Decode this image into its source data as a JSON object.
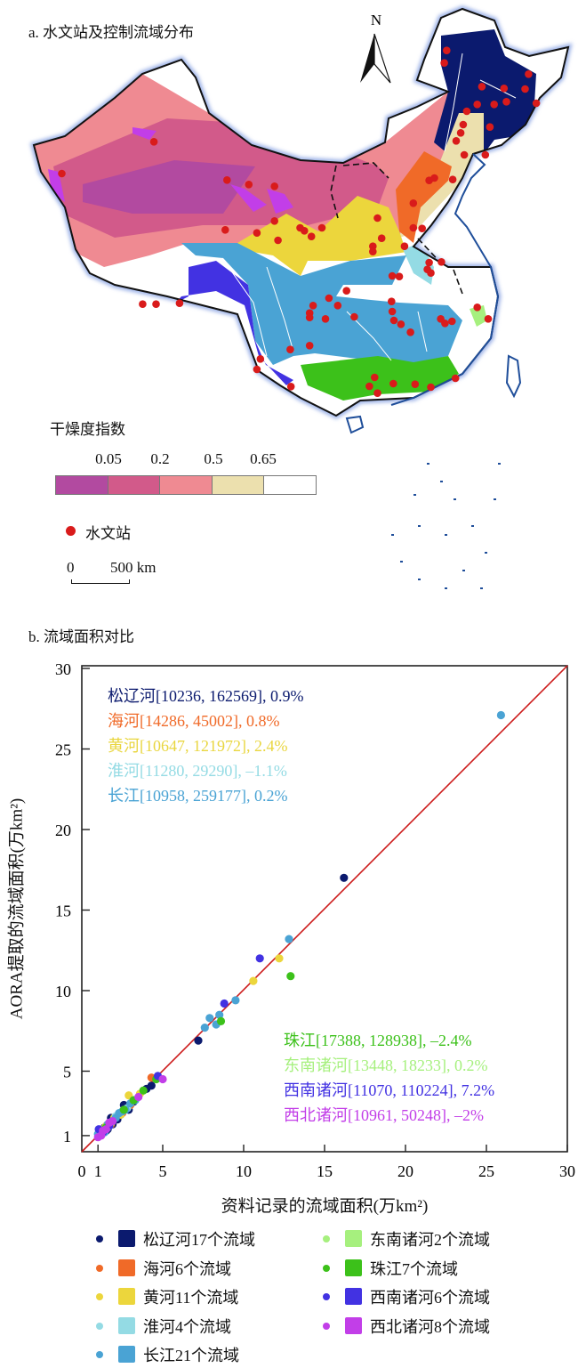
{
  "panel_a": {
    "title": "a. 水文站及控制流域分布",
    "north_label": "N",
    "aridity_legend": {
      "title": "干燥度指数",
      "breaks": [
        "0.05",
        "0.2",
        "0.5",
        "0.65"
      ],
      "colors": [
        "#b24aa0",
        "#d25a8a",
        "#ef8a92",
        "#ece0ae",
        "#ffffff"
      ]
    },
    "station_legend": {
      "label": "水文站",
      "color": "#d91b1b"
    },
    "scale_bar": {
      "start": "0",
      "end": "500 km"
    },
    "basin_colors": {
      "songliao": "#0b1a6e",
      "haihe": "#f06a28",
      "huanghe": "#ecd63c",
      "huaihe": "#94dbe4",
      "changjiang": "#4aa3d4",
      "southeast": "#a6f07e",
      "zhujiang": "#3cc11a",
      "southwest": "#4232e2",
      "northwest": "#c23ee8"
    }
  },
  "panel_b": {
    "title": "b. 流域面积对比"
  },
  "chart_data": {
    "type": "scatter",
    "xlabel": "资料记录的流域面积(万km²)",
    "ylabel": "AORA提取的流域面积(万km²)",
    "xlim": [
      0,
      30
    ],
    "ylim": [
      0,
      30
    ],
    "xticks": [
      "0",
      "1",
      "5",
      "10",
      "15",
      "20",
      "25",
      "30"
    ],
    "yticks": [
      "1",
      "5",
      "10",
      "15",
      "20",
      "25",
      "30"
    ],
    "reference_line": "1:1",
    "reference_line_color": "#cc1b1b",
    "grid": false,
    "annotations_top_left": [
      {
        "text": "松辽河[10236, 162569], 0.9%",
        "color": "#0b1a6e"
      },
      {
        "text": "海河[14286, 45002], 0.8%",
        "color": "#f06a28"
      },
      {
        "text": "黄河[10647, 121972], 2.4%",
        "color": "#e9d640"
      },
      {
        "text": "淮河[11280, 29290], –1.1%",
        "color": "#94dbe4"
      },
      {
        "text": "长江[10958, 259177], 0.2%",
        "color": "#4aa3d4"
      }
    ],
    "annotations_bottom_right": [
      {
        "text": "珠江[17388, 128938], –2.4%",
        "color": "#3cc11a"
      },
      {
        "text": "东南诸河[13448, 18233], 0.2%",
        "color": "#a6f07e"
      },
      {
        "text": "西南诸河[11070, 110224], 7.2%",
        "color": "#4232e2"
      },
      {
        "text": "西北诸河[10961, 50248], –2%",
        "color": "#c23ee8"
      }
    ],
    "series": [
      {
        "name": "松辽河17个流域",
        "color": "#0b1a6e",
        "points": [
          [
            16.2,
            17.0
          ],
          [
            7.2,
            6.9
          ],
          [
            4.3,
            4.1
          ],
          [
            2.9,
            2.6
          ],
          [
            2.6,
            2.9
          ],
          [
            1.8,
            2.1
          ],
          [
            1.6,
            1.4
          ],
          [
            1.3,
            1.2
          ],
          [
            1.1,
            1.0
          ],
          [
            2.2,
            2.0
          ],
          [
            3.2,
            3.1
          ],
          [
            1.9,
            1.7
          ],
          [
            1.5,
            1.3
          ],
          [
            2.4,
            2.3
          ],
          [
            1.2,
            1.1
          ],
          [
            4.0,
            3.9
          ],
          [
            1.4,
            1.5
          ]
        ]
      },
      {
        "name": "海河6个流域",
        "color": "#f06a28",
        "points": [
          [
            4.3,
            4.6
          ],
          [
            2.5,
            2.4
          ],
          [
            1.8,
            1.7
          ],
          [
            1.4,
            1.3
          ],
          [
            1.2,
            1.1
          ],
          [
            3.0,
            2.9
          ]
        ]
      },
      {
        "name": "黄河11个流域",
        "color": "#ecd63c",
        "points": [
          [
            12.2,
            12.0
          ],
          [
            10.6,
            10.6
          ],
          [
            2.9,
            3.5
          ],
          [
            2.0,
            2.1
          ],
          [
            1.5,
            1.6
          ],
          [
            1.2,
            1.2
          ],
          [
            2.4,
            2.3
          ],
          [
            1.7,
            1.6
          ],
          [
            1.1,
            1.1
          ],
          [
            3.6,
            3.6
          ],
          [
            1.3,
            1.4
          ]
        ]
      },
      {
        "name": "淮河4个流域",
        "color": "#94dbe4",
        "points": [
          [
            1.3,
            1.3
          ],
          [
            2.1,
            2.2
          ],
          [
            1.6,
            1.5
          ],
          [
            2.8,
            2.7
          ]
        ]
      },
      {
        "name": "长江21个流域",
        "color": "#4aa3d4",
        "points": [
          [
            25.9,
            27.1
          ],
          [
            12.8,
            13.2
          ],
          [
            9.5,
            9.4
          ],
          [
            7.9,
            8.3
          ],
          [
            8.5,
            8.5
          ],
          [
            7.6,
            7.7
          ],
          [
            8.3,
            7.9
          ],
          [
            3.0,
            3.0
          ],
          [
            2.1,
            2.1
          ],
          [
            1.2,
            1.3
          ],
          [
            1.5,
            1.4
          ],
          [
            2.7,
            2.6
          ],
          [
            1.8,
            1.8
          ],
          [
            1.1,
            1.0
          ],
          [
            3.3,
            3.2
          ],
          [
            1.4,
            1.2
          ],
          [
            2.3,
            2.4
          ],
          [
            1.6,
            1.7
          ],
          [
            1.9,
            1.9
          ],
          [
            1.0,
            1.1
          ],
          [
            2.5,
            2.5
          ]
        ]
      },
      {
        "name": "东南诸河2个流域",
        "color": "#a6f07e",
        "points": [
          [
            1.4,
            1.4
          ],
          [
            1.8,
            1.8
          ]
        ]
      },
      {
        "name": "珠江7个流域",
        "color": "#3cc11a",
        "points": [
          [
            12.9,
            10.9
          ],
          [
            8.6,
            8.1
          ],
          [
            3.8,
            3.8
          ],
          [
            4.6,
            4.5
          ],
          [
            2.6,
            2.6
          ],
          [
            1.5,
            1.5
          ],
          [
            3.2,
            3.2
          ]
        ]
      },
      {
        "name": "西南诸河6个流域",
        "color": "#4232e2",
        "points": [
          [
            11.0,
            12.0
          ],
          [
            8.8,
            9.2
          ],
          [
            4.7,
            4.7
          ],
          [
            1.05,
            1.4
          ],
          [
            1.3,
            1.2
          ],
          [
            1.7,
            1.6
          ]
        ]
      },
      {
        "name": "西北诸河8个流域",
        "color": "#c23ee8",
        "points": [
          [
            5.0,
            4.5
          ],
          [
            3.5,
            3.4
          ],
          [
            1.0,
            0.9
          ],
          [
            1.2,
            1.0
          ],
          [
            1.5,
            1.4
          ],
          [
            1.7,
            1.8
          ],
          [
            1.9,
            1.9
          ],
          [
            1.3,
            1.3
          ]
        ]
      }
    ]
  }
}
